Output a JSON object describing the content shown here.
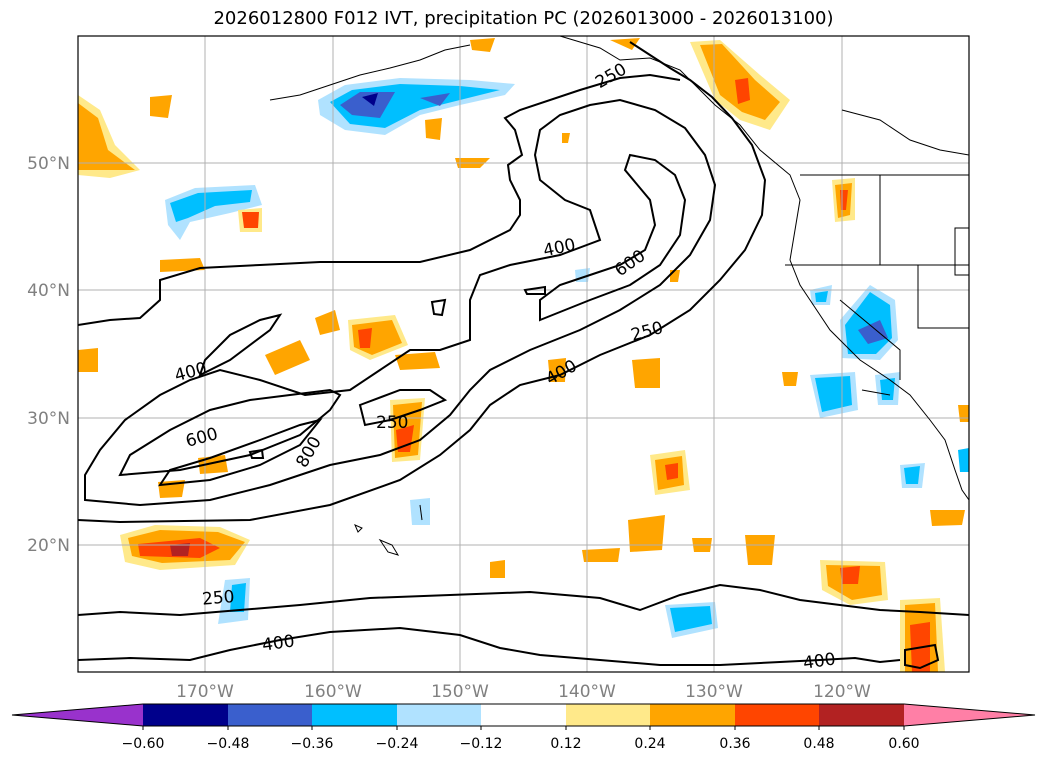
{
  "map": {
    "title": "2026012800 F012 IVT, precipitation PC (2026013000 - 2026013100)",
    "projection": "PlateCarree",
    "extent_lon": [
      -180,
      -110
    ],
    "extent_lat": [
      10,
      60
    ],
    "lat_labels": [
      "50°N",
      "40°N",
      "30°N",
      "20°N"
    ],
    "lon_labels": [
      "170°W",
      "160°W",
      "150°W",
      "140°W",
      "130°W",
      "120°W"
    ],
    "ivt_contour_labels": [
      "250",
      "400",
      "600",
      "800",
      "400",
      "600",
      "250",
      "400",
      "250",
      "400",
      "250",
      "400"
    ],
    "colorbar": {
      "ticks": [
        "−0.60",
        "−0.48",
        "−0.36",
        "−0.24",
        "−0.12",
        "0.12",
        "0.24",
        "0.36",
        "0.48",
        "0.60"
      ],
      "colors": [
        "#9932cc",
        "#00008b",
        "#3a5fcd",
        "#00bfff",
        "#b0e2ff",
        "#ffffff",
        "#ffe98a",
        "#ffa500",
        "#ff4500",
        "#b22222",
        "#ff7fa6"
      ],
      "extend": "both"
    }
  }
}
